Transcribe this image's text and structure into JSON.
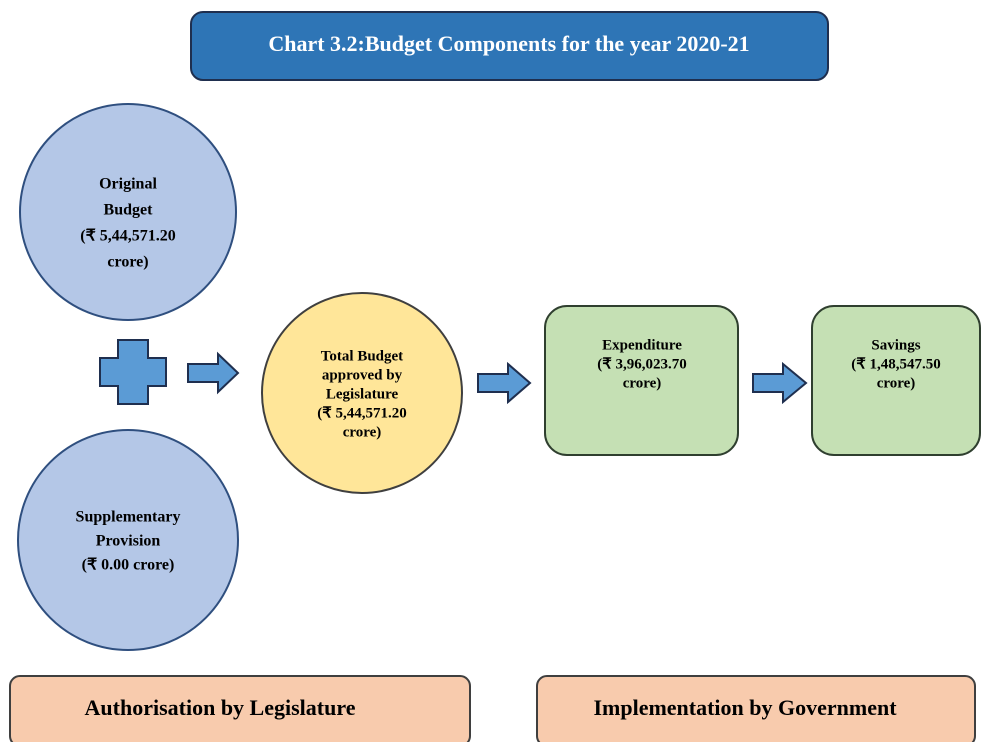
{
  "title": "Chart 3.2:Budget Components for the year 2020-21",
  "nodes": [
    {
      "lines": [
        "Original",
        "Budget",
        "(₹ 5,44,571.20",
        "crore)"
      ]
    },
    {
      "lines": [
        "Supplementary",
        "Provision",
        "(₹ 0.00  crore)"
      ]
    },
    {
      "lines": [
        "Total Budget",
        "approved by",
        "Legislature",
        "(₹ 5,44,571.20",
        "crore)"
      ]
    },
    {
      "lines": [
        "Expenditure",
        "(₹ 3,96,023.70",
        "crore)"
      ]
    },
    {
      "lines": [
        "Savings",
        "(₹ 1,48,547.50",
        "crore)"
      ]
    }
  ],
  "footer": [
    "Authorisation by Legislature",
    "Implementation by Government"
  ]
}
